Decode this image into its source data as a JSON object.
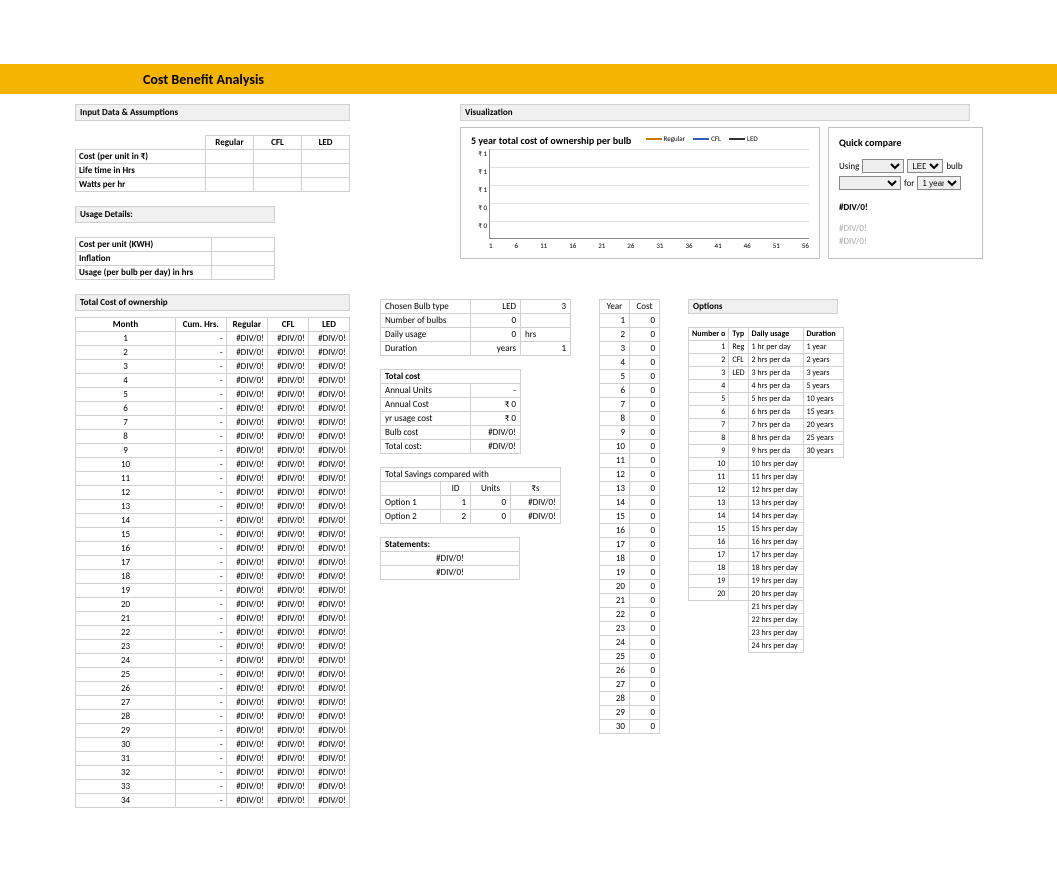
{
  "title": "Cost Benefit Analysis",
  "sections": {
    "input": "Input Data & Assumptions",
    "usage": "Usage Details:",
    "tco": "Total Cost of ownership",
    "viz": "Visualization",
    "options": "Options"
  },
  "input_table": {
    "cols": [
      "Regular",
      "CFL",
      "LED"
    ],
    "rows": [
      {
        "label": "Cost (per unit in ₹)",
        "vals": [
          "",
          "",
          ""
        ]
      },
      {
        "label": "Life time in Hrs",
        "vals": [
          "",
          "",
          ""
        ]
      },
      {
        "label": "Watts per hr",
        "vals": [
          "",
          "",
          ""
        ]
      }
    ]
  },
  "usage_table": {
    "rows": [
      {
        "label": "Cost per unit (KWH)",
        "val": ""
      },
      {
        "label": "Inflation",
        "val": ""
      },
      {
        "label": "Usage (per bulb per day) in hrs",
        "val": ""
      }
    ]
  },
  "tco": {
    "cols": [
      "Month",
      "Cum. Hrs.",
      "Regular",
      "CFL",
      "LED"
    ],
    "months": 34,
    "div0": "#DIV/0!",
    "dash": "-"
  },
  "chart": {
    "title": "5 year total cost of ownership per bulb",
    "series": [
      {
        "name": "Regular",
        "color": "#cc7a00"
      },
      {
        "name": "CFL",
        "color": "#2e5cb8"
      },
      {
        "name": "LED",
        "color": "#333333"
      }
    ],
    "y_labels": [
      "₹ 1",
      "₹ 1",
      "₹ 1",
      "₹ 0",
      "₹ 0"
    ],
    "x_labels": [
      "1",
      "6",
      "11",
      "16",
      "21",
      "26",
      "31",
      "36",
      "41",
      "46",
      "51",
      "56"
    ]
  },
  "quick": {
    "title": "Quick compare",
    "using_label": "Using",
    "bulb_label": "bulb",
    "for_label": "for",
    "sel1": "",
    "sel2": "LED",
    "sel3": "",
    "sel4": "1 year",
    "result": "#DIV/0!",
    "muted1": "#DIV/0!",
    "muted2": "#DIV/0!"
  },
  "mid": {
    "chosen": [
      [
        "Chosen Bulb type",
        "LED",
        "3"
      ],
      [
        "Number of bulbs",
        "0",
        ""
      ],
      [
        "Daily usage",
        "0",
        "hrs"
      ],
      [
        "Duration",
        "years",
        "1"
      ]
    ],
    "totalcost_header": "Total cost",
    "totalcost": [
      [
        "Annual Units",
        "-"
      ],
      [
        "Annual Cost",
        "₹ 0"
      ],
      [
        " yr usage cost",
        "₹ 0"
      ],
      [
        "Bulb cost",
        "#DIV/0!"
      ],
      [
        "Total cost:",
        "#DIV/0!"
      ]
    ],
    "savings_header": "Total Savings compared with",
    "savings_cols": [
      "",
      "ID",
      "Units",
      "₹s"
    ],
    "savings": [
      [
        "Option 1",
        "1",
        "0",
        "#DIV/0!"
      ],
      [
        "Option 2",
        "2",
        "0",
        "#DIV/0!"
      ]
    ],
    "statements_header": "Statements:",
    "statements": [
      "#DIV/0!",
      "#DIV/0!"
    ]
  },
  "year_cost": {
    "cols": [
      "Year",
      "Cost"
    ],
    "rows": 30
  },
  "options_table": {
    "cols": [
      "Number o",
      "Typ",
      "Daily usage",
      "Duration"
    ],
    "types": {
      "1": "Reg",
      "2": "CFL",
      "3": "LED"
    },
    "daily_usage": [
      "1 hr per day",
      "2 hrs per da",
      "3 hrs per da",
      "4 hrs per da",
      "5 hrs per da",
      "6 hrs per da",
      "7 hrs per da",
      "8 hrs per da",
      "9 hrs per da",
      "10 hrs per day",
      "11 hrs per day",
      "12 hrs per day",
      "13 hrs per day",
      "14 hrs per day",
      "15 hrs per day",
      "16 hrs per day",
      "17 hrs per day",
      "18 hrs per day",
      "19 hrs per day",
      "20 hrs per day",
      "21 hrs per day",
      "22 hrs per day",
      "23 hrs per day",
      "24 hrs per day"
    ],
    "duration": [
      "1 year",
      "2 years",
      "3 years",
      "5 years",
      "10 years",
      "15 years",
      "20 years",
      "25 years",
      "30 years"
    ]
  },
  "colors": {
    "accent": "#f4b400",
    "border": "#d0d0d0"
  }
}
